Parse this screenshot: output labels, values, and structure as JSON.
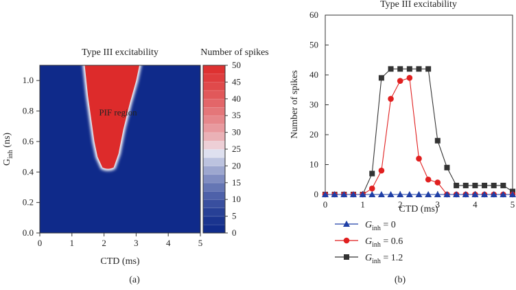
{
  "chart_data": [
    {
      "type": "heatmap",
      "title": "Type III excitability",
      "xlabel": "CTD (ms)",
      "ylabel": {
        "base": "G",
        "sub": "inh",
        "rest": " (ns)"
      },
      "xlim": [
        0,
        5
      ],
      "ylim": [
        0,
        1.1
      ],
      "xticks": [
        "0",
        "1",
        "2",
        "3",
        "4",
        "5"
      ],
      "yticks": [
        "0.0",
        "0.2",
        "0.4",
        "0.6",
        "0.8",
        "1.0"
      ],
      "annotation": "PIF region",
      "colorbar": {
        "title": "Number of spikes",
        "range": [
          0,
          50
        ],
        "ticks": [
          "0",
          "5",
          "10",
          "15",
          "20",
          "25",
          "30",
          "35",
          "40",
          "45",
          "50"
        ]
      },
      "region": {
        "value_inside": 42,
        "value_outside": 0,
        "left_boundary": [
          [
            1.4,
            1.1
          ],
          [
            1.5,
            0.9
          ],
          [
            1.6,
            0.75
          ],
          [
            1.7,
            0.6
          ],
          [
            1.8,
            0.5
          ],
          [
            1.95,
            0.43
          ]
        ],
        "right_boundary": [
          [
            2.3,
            0.43
          ],
          [
            2.45,
            0.52
          ],
          [
            2.6,
            0.68
          ],
          [
            2.8,
            0.85
          ],
          [
            3.0,
            1.0
          ],
          [
            3.1,
            1.1
          ]
        ]
      },
      "caption": "(a)"
    },
    {
      "type": "line",
      "title": "Type III excitability",
      "xlabel": "CTD (ms)",
      "ylabel": "Number of spikes",
      "xlim": [
        0,
        5
      ],
      "ylim": [
        0,
        60
      ],
      "xticks": [
        "0",
        "1",
        "2",
        "3",
        "4",
        "5"
      ],
      "yticks": [
        "0",
        "10",
        "20",
        "30",
        "40",
        "50",
        "60"
      ],
      "x": [
        0,
        0.25,
        0.5,
        0.75,
        1.0,
        1.25,
        1.5,
        1.75,
        2.0,
        2.25,
        2.5,
        2.75,
        3.0,
        3.25,
        3.5,
        3.75,
        4.0,
        4.25,
        4.5,
        4.75,
        5.0
      ],
      "series": [
        {
          "name_base": "G",
          "name_sub": "inh",
          "name_rest": " = 0",
          "color": "#1f3fa6",
          "marker": "triangle",
          "values": [
            0,
            0,
            0,
            0,
            0,
            0,
            0,
            0,
            0,
            0,
            0,
            0,
            0,
            0,
            0,
            0,
            0,
            0,
            0,
            0,
            0
          ]
        },
        {
          "name_base": "G",
          "name_sub": "inh",
          "name_rest": " = 0.6",
          "color": "#e01f1f",
          "marker": "circle",
          "values": [
            0,
            0,
            0,
            0,
            0,
            2,
            8,
            32,
            38,
            39,
            12,
            5,
            4,
            0,
            0,
            0,
            0,
            0,
            0,
            0,
            0
          ]
        },
        {
          "name_base": "G",
          "name_sub": "inh",
          "name_rest": " = 1.2",
          "color": "#333333",
          "marker": "square",
          "values": [
            0,
            0,
            0,
            0,
            0,
            7,
            39,
            42,
            42,
            42,
            42,
            42,
            18,
            9,
            3,
            3,
            3,
            3,
            3,
            3,
            1
          ]
        }
      ],
      "caption": "(b)"
    }
  ]
}
